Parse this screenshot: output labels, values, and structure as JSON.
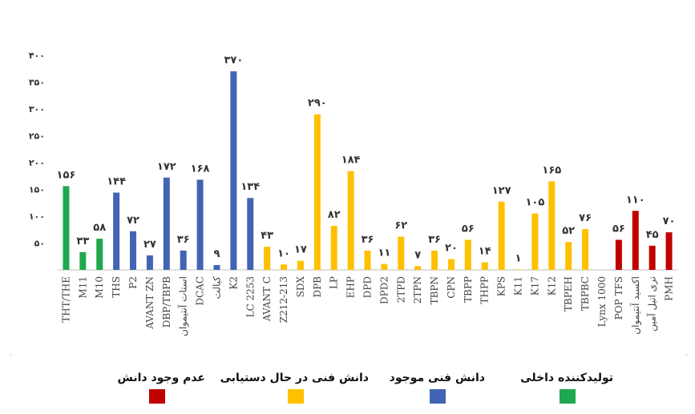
{
  "chart_data": {
    "type": "bar",
    "title": "",
    "xlabel": "",
    "ylabel": "",
    "ylim": [
      0,
      400
    ],
    "yticks": [
      0,
      50,
      100,
      150,
      200,
      250,
      300,
      350,
      400
    ],
    "ytick_labels": [
      "",
      "۵۰",
      "۱۰۰",
      "۱۵۰",
      "۲۰۰",
      "۲۵۰",
      "۳۰۰",
      "۳۵۰",
      "۴۰۰"
    ],
    "grid": false,
    "categories": [
      "THT/THE",
      "M11",
      "M10",
      "THS",
      "P2",
      "AVANT ZN",
      "DBP/TBPB",
      "استات آنتیموان",
      "DCAC",
      "کبالت",
      "K2",
      "LC 2253",
      "AVANT C",
      "Z212-213",
      "SDX",
      "DPB",
      "LP",
      "EHP",
      "DPD",
      "DPD2",
      "2TPD",
      "2TPN",
      "TBPN",
      "CPN",
      "TBPP",
      "THPP",
      "KPS",
      "K11",
      "K17",
      "K12",
      "TBPEH",
      "TBPBC",
      "Lynx 1000",
      "POP TFS",
      "اکسید آنتیموان",
      "تری اتیل آمین",
      "PMH"
    ],
    "values": [
      156,
      33,
      58,
      144,
      72,
      27,
      172,
      36,
      168,
      9,
      370,
      134,
      43,
      10,
      17,
      290,
      82,
      184,
      36,
      11,
      62,
      7,
      36,
      20,
      56,
      14,
      127,
      1,
      105,
      165,
      52,
      76,
      0,
      56,
      110,
      45,
      70
    ],
    "value_labels": [
      "۱۵۶",
      "۳۳",
      "۵۸",
      "۱۴۴",
      "۷۲",
      "۲۷",
      "۱۷۲",
      "۳۶",
      "۱۶۸",
      "۹",
      "۳۷۰",
      "۱۳۴",
      "۴۳",
      "۱۰",
      "۱۷",
      "۲۹۰",
      "۸۲",
      "۱۸۴",
      "۳۶",
      "۱۱",
      "۶۲",
      "۷",
      "۳۶",
      "۲۰",
      "۵۶",
      "۱۴",
      "۱۲۷",
      "۱",
      "۱۰۵",
      "۱۶۵",
      "۵۲",
      "۷۶",
      "",
      "۵۶",
      "۱۱۰",
      "۴۵",
      "۷۰"
    ],
    "groups": [
      0,
      0,
      0,
      1,
      1,
      1,
      1,
      1,
      1,
      1,
      1,
      1,
      2,
      2,
      2,
      2,
      2,
      2,
      2,
      2,
      2,
      2,
      2,
      2,
      2,
      2,
      2,
      2,
      2,
      2,
      2,
      2,
      2,
      3,
      3,
      3,
      3
    ],
    "legend": [
      {
        "label": "تولیدکننده داخلی",
        "color": "#1fa84f"
      },
      {
        "label": "دانش فنی موجود",
        "color": "#4264b4"
      },
      {
        "label": "دانش فنی در حال دستیابی",
        "color": "#ffc000"
      },
      {
        "label": "عدم وجود دانش",
        "color": "#c00000"
      }
    ],
    "legend_placement": "bottom"
  }
}
